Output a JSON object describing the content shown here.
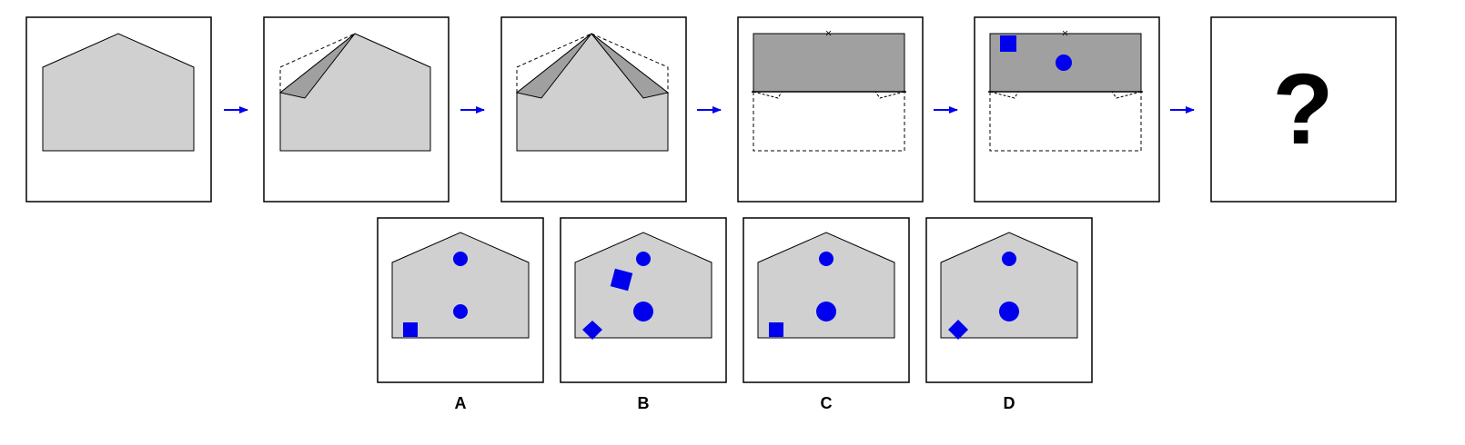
{
  "puzzle": {
    "sequence": [
      {
        "step": 1,
        "description_icon": "pentagon-house-shape"
      },
      {
        "step": 2,
        "description_icon": "left-corner-folded-shape"
      },
      {
        "step": 3,
        "description_icon": "both-corners-folded-shape"
      },
      {
        "step": 4,
        "description_icon": "bottom-folded-up-shape"
      },
      {
        "step": 5,
        "description_icon": "punched-folded-shape"
      }
    ],
    "unknown_symbol": "?",
    "options": [
      {
        "label": "A"
      },
      {
        "label": "B"
      },
      {
        "label": "C"
      },
      {
        "label": "D"
      }
    ]
  },
  "colors": {
    "paper_fill": "#d0d0d0",
    "folded_fill": "#a0a0a0",
    "outline": "#000000",
    "punch_blue": "#0000ee",
    "arrow_blue": "#0000ee"
  }
}
